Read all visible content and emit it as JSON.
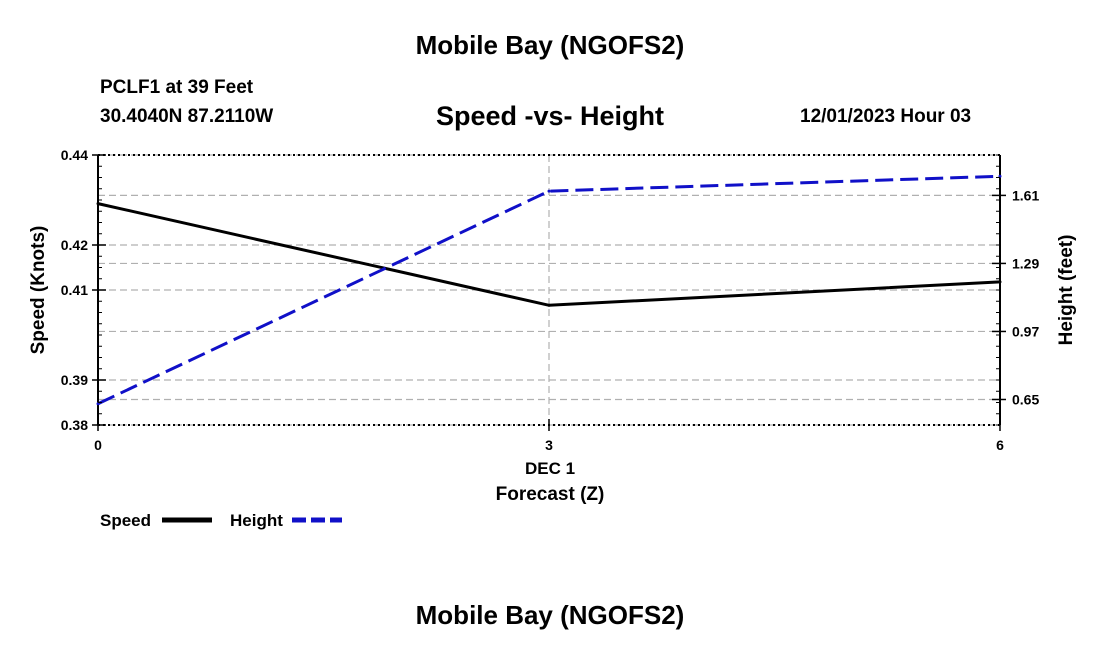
{
  "header": {
    "title": "Mobile Bay (NGOFS2)",
    "station": "PCLF1 at 39 Feet",
    "coords": "30.4040N  87.2110W",
    "subtitle": "Speed -vs- Height",
    "timestamp": "12/01/2023 Hour 03"
  },
  "footer": {
    "title": "Mobile Bay (NGOFS2)"
  },
  "chart_data": {
    "type": "line",
    "title": "Speed -vs- Height",
    "x": [
      0,
      3,
      6
    ],
    "x_tick_labels": [
      "0",
      "3",
      "6"
    ],
    "x_date_label": "DEC 1",
    "xlabel": "Forecast (Z)",
    "xlim": [
      0,
      6
    ],
    "ylabel_left": "Speed (Knots)",
    "ylabel_right": "Height (feet)",
    "ylim_left": [
      0.38,
      0.44
    ],
    "ylim_right": [
      0.53,
      1.8
    ],
    "y_ticks_left": [
      0.38,
      0.39,
      0.41,
      0.42,
      0.44
    ],
    "y_tick_labels_left": [
      "0.38",
      "0.39",
      "0.41",
      "0.42",
      "0.44"
    ],
    "y_ticks_right": [
      0.65,
      0.97,
      1.29,
      1.61
    ],
    "y_tick_labels_right": [
      "0.65",
      "0.97",
      "1.29",
      "1.61"
    ],
    "grid": true,
    "legend_position": "bottom-left",
    "series": [
      {
        "name": "Speed",
        "axis": "left",
        "color": "#000000",
        "style": "solid",
        "values": [
          0.4292,
          0.4066,
          0.4118
        ]
      },
      {
        "name": "Height",
        "axis": "right",
        "color": "#1010c8",
        "style": "dashed",
        "values": [
          0.63,
          1.63,
          1.7
        ]
      }
    ]
  }
}
